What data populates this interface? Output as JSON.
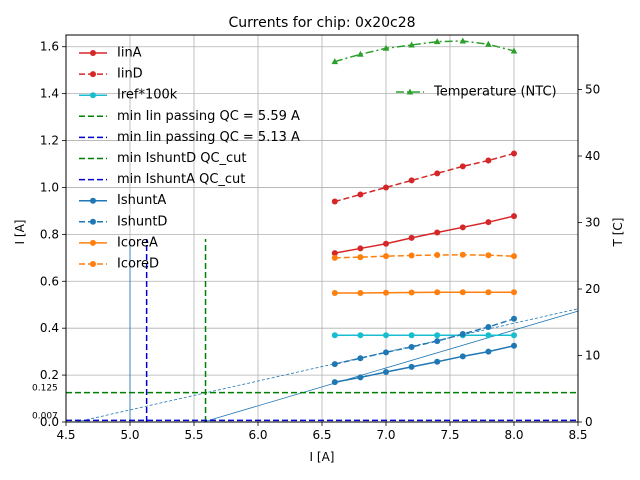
{
  "chart_data": {
    "type": "line",
    "title": "Currents for chip: 0x20c28",
    "xlabel": "I [A]",
    "ylabel": "I [A]",
    "y2label": "T [C]",
    "xlim": [
      4.5,
      8.5
    ],
    "ylim": [
      0.0,
      1.65
    ],
    "y2lim": [
      0,
      58.2
    ],
    "grid": true,
    "x_ticks": [
      "4.5",
      "5.0",
      "5.5",
      "6.0",
      "6.5",
      "7.0",
      "7.5",
      "8.0",
      "8.5"
    ],
    "y_ticks": [
      "0.0",
      "0.2",
      "0.4",
      "0.6",
      "0.8",
      "1.0",
      "1.2",
      "1.4",
      "1.6"
    ],
    "y2_ticks": [
      "0",
      "10",
      "20",
      "30",
      "40",
      "50"
    ],
    "x": [
      6.6,
      6.8,
      7.0,
      7.2,
      7.4,
      7.6,
      7.8,
      8.0
    ],
    "series": [
      {
        "name": "IinA",
        "color": "#d62728",
        "dash": "solid",
        "values": [
          0.72,
          0.74,
          0.76,
          0.785,
          0.808,
          0.83,
          0.852,
          0.878
        ]
      },
      {
        "name": "IinD",
        "color": "#d62728",
        "dash": "dashed",
        "values": [
          0.94,
          0.97,
          1.0,
          1.03,
          1.06,
          1.09,
          1.115,
          1.145
        ]
      },
      {
        "name": "Iref*100k",
        "color": "#17becf",
        "dash": "solid",
        "values": [
          0.37,
          0.37,
          0.37,
          0.37,
          0.37,
          0.37,
          0.37,
          0.37
        ]
      },
      {
        "name": "IshuntA",
        "color": "#1f77b4",
        "dash": "solid",
        "values": [
          0.17,
          0.19,
          0.213,
          0.235,
          0.257,
          0.28,
          0.3,
          0.325
        ]
      },
      {
        "name": "IshuntD",
        "color": "#1f77b4",
        "dash": "dashed",
        "values": [
          0.247,
          0.272,
          0.297,
          0.32,
          0.345,
          0.375,
          0.405,
          0.44
        ]
      },
      {
        "name": "IcoreA",
        "color": "#ff7f0e",
        "dash": "solid",
        "values": [
          0.55,
          0.55,
          0.551,
          0.552,
          0.553,
          0.553,
          0.553,
          0.553
        ]
      },
      {
        "name": "IcoreD",
        "color": "#ff7f0e",
        "dash": "dashed",
        "values": [
          0.7,
          0.703,
          0.707,
          0.71,
          0.712,
          0.713,
          0.711,
          0.707
        ]
      }
    ],
    "temperature": {
      "name": "Temperature (NTC)",
      "color": "#2ca02c",
      "dash": "dashdot",
      "values": [
        54.2,
        55.3,
        56.2,
        56.7,
        57.2,
        57.3,
        56.8,
        55.8
      ]
    },
    "fits": [
      {
        "name": "IshuntA fit",
        "color": "#1f77b4",
        "dash": "solid",
        "slope": 0.1615,
        "intercept": -0.9
      },
      {
        "name": "IshuntD fit",
        "color": "#1f77b4",
        "dash": "dashed",
        "slope": 0.1232,
        "intercept": -0.5645
      }
    ],
    "vlines": [
      {
        "name": "min Iin passing QC = 5.59 A",
        "color": "#008000",
        "x": 5.59,
        "ymax": 0.78
      },
      {
        "name": "min Iin passing QC = 5.13 A",
        "color": "#0000cc",
        "x": 5.13,
        "ymax": 0.78
      }
    ],
    "vthin": {
      "x": 5.0,
      "ymax": 0.78,
      "color": "#1f77b4"
    },
    "hlines": [
      {
        "name": "min IshuntD QC_cut",
        "color": "#008000",
        "y": 0.125,
        "label": "0.125"
      },
      {
        "name": "min IshuntA QC_cut",
        "color": "#0000cc",
        "y": 0.007,
        "label": "0.007"
      }
    ],
    "legend_order": [
      "IinA",
      "IinD",
      "Iref*100k",
      "min Iin passing QC = 5.59 A",
      "min Iin passing QC = 5.13 A",
      "min IshuntD QC_cut",
      "min IshuntA QC_cut",
      "IshuntA",
      "IshuntD",
      "IcoreA",
      "IcoreD"
    ],
    "legend_position": "upper-left",
    "legend2_position": "upper-right"
  }
}
